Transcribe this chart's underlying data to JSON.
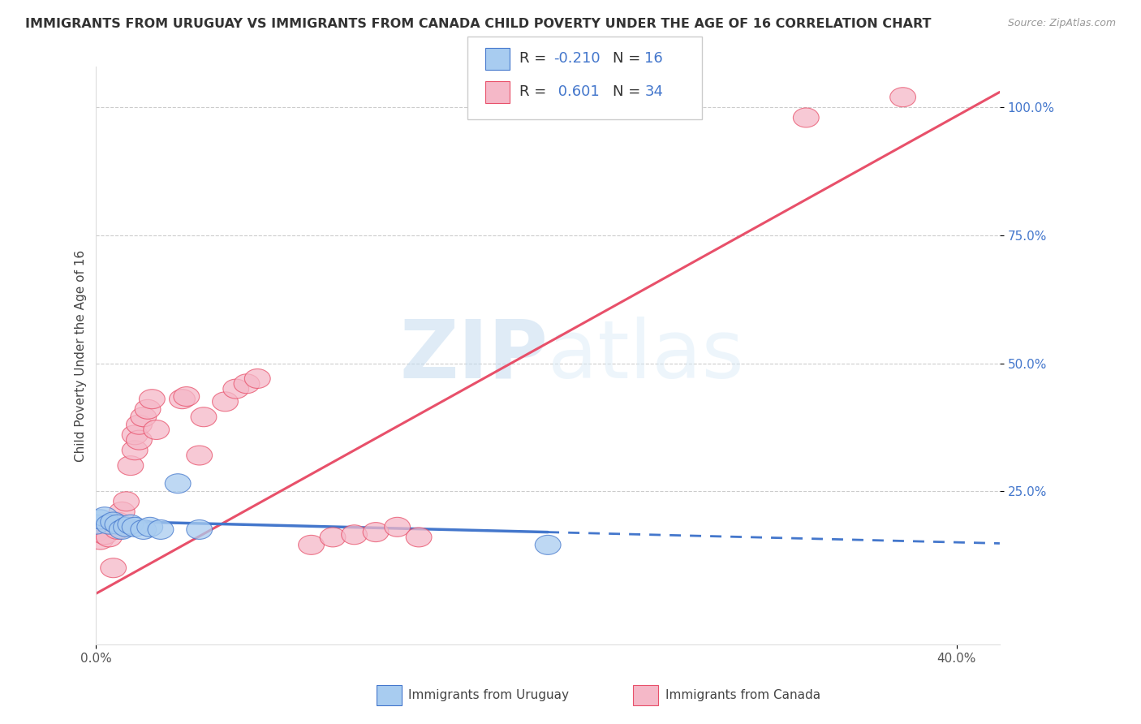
{
  "title": "IMMIGRANTS FROM URUGUAY VS IMMIGRANTS FROM CANADA CHILD POVERTY UNDER THE AGE OF 16 CORRELATION CHART",
  "source": "Source: ZipAtlas.com",
  "ylabel": "Child Poverty Under the Age of 16",
  "xlim": [
    0.0,
    0.42
  ],
  "ylim": [
    -0.05,
    1.08
  ],
  "yticks": [
    0.25,
    0.5,
    0.75,
    1.0
  ],
  "ytick_labels": [
    "25.0%",
    "50.0%",
    "75.0%",
    "100.0%"
  ],
  "xticks": [
    0.0,
    0.4
  ],
  "xtick_labels": [
    "0.0%",
    "40.0%"
  ],
  "watermark_zip": "ZIP",
  "watermark_atlas": "atlas",
  "color_uruguay": "#A8CCF0",
  "color_canada": "#F5B8C8",
  "line_color_uruguay": "#4477CC",
  "line_color_canada": "#E8506A",
  "uruguay_points": [
    [
      0.0,
      0.185
    ],
    [
      0.002,
      0.195
    ],
    [
      0.004,
      0.2
    ],
    [
      0.006,
      0.185
    ],
    [
      0.008,
      0.19
    ],
    [
      0.01,
      0.185
    ],
    [
      0.012,
      0.175
    ],
    [
      0.014,
      0.18
    ],
    [
      0.016,
      0.185
    ],
    [
      0.018,
      0.18
    ],
    [
      0.022,
      0.175
    ],
    [
      0.025,
      0.18
    ],
    [
      0.03,
      0.175
    ],
    [
      0.038,
      0.265
    ],
    [
      0.048,
      0.175
    ],
    [
      0.21,
      0.145
    ]
  ],
  "canada_points": [
    [
      0.0,
      0.17
    ],
    [
      0.002,
      0.155
    ],
    [
      0.004,
      0.165
    ],
    [
      0.006,
      0.16
    ],
    [
      0.008,
      0.1
    ],
    [
      0.01,
      0.175
    ],
    [
      0.01,
      0.19
    ],
    [
      0.012,
      0.21
    ],
    [
      0.014,
      0.23
    ],
    [
      0.016,
      0.3
    ],
    [
      0.018,
      0.33
    ],
    [
      0.018,
      0.36
    ],
    [
      0.02,
      0.35
    ],
    [
      0.02,
      0.38
    ],
    [
      0.022,
      0.395
    ],
    [
      0.024,
      0.41
    ],
    [
      0.026,
      0.43
    ],
    [
      0.028,
      0.37
    ],
    [
      0.04,
      0.43
    ],
    [
      0.042,
      0.435
    ],
    [
      0.048,
      0.32
    ],
    [
      0.05,
      0.395
    ],
    [
      0.06,
      0.425
    ],
    [
      0.065,
      0.45
    ],
    [
      0.07,
      0.46
    ],
    [
      0.075,
      0.47
    ],
    [
      0.1,
      0.145
    ],
    [
      0.11,
      0.16
    ],
    [
      0.12,
      0.165
    ],
    [
      0.13,
      0.17
    ],
    [
      0.14,
      0.18
    ],
    [
      0.15,
      0.16
    ],
    [
      0.33,
      0.98
    ],
    [
      0.375,
      1.02
    ]
  ],
  "uruguay_trendline_solid": [
    [
      0.0,
      0.192
    ],
    [
      0.21,
      0.17
    ]
  ],
  "uruguay_trendline_dash": [
    [
      0.21,
      0.17
    ],
    [
      0.42,
      0.148
    ]
  ],
  "canada_trendline": [
    [
      0.0,
      0.05
    ],
    [
      0.42,
      1.03
    ]
  ],
  "background_color": "#FFFFFF",
  "grid_color": "#CCCCCC",
  "title_fontsize": 11.5,
  "axis_label_fontsize": 11,
  "tick_fontsize": 11
}
